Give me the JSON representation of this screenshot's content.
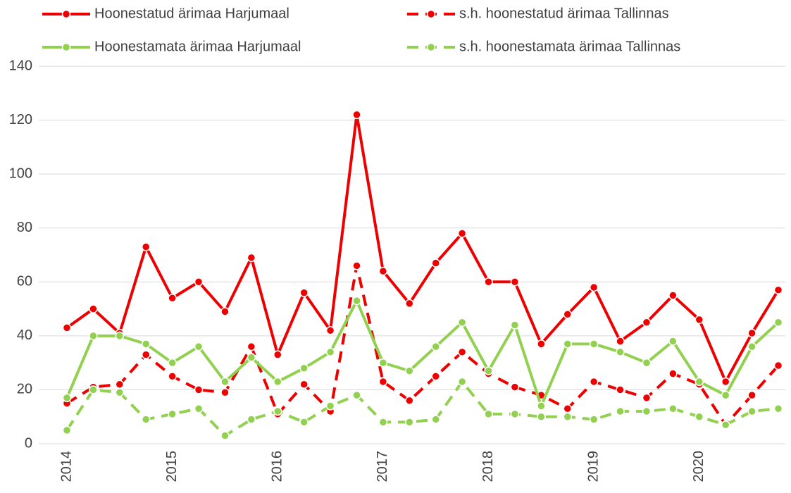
{
  "chart_data": {
    "type": "line",
    "categories": [
      "2014",
      null,
      null,
      null,
      "2015",
      null,
      null,
      null,
      "2016",
      null,
      null,
      null,
      "2017",
      null,
      null,
      null,
      "2018",
      null,
      null,
      null,
      "2019",
      null,
      null,
      null,
      "2020",
      null,
      null,
      null
    ],
    "series": [
      {
        "name": "Hoonestatud ärimaa Harjumaal",
        "color": "#ee0000",
        "dashed": false,
        "values": [
          43,
          50,
          41,
          73,
          54,
          60,
          49,
          69,
          33,
          56,
          42,
          122,
          64,
          52,
          67,
          78,
          60,
          60,
          37,
          48,
          58,
          38,
          45,
          55,
          46,
          23,
          41,
          57
        ]
      },
      {
        "name": "s.h. hoonestatud ärimaa Tallinnas",
        "color": "#ee0000",
        "dashed": true,
        "values": [
          15,
          21,
          22,
          33,
          25,
          20,
          19,
          36,
          11,
          22,
          12,
          66,
          23,
          16,
          25,
          34,
          26,
          21,
          18,
          13,
          23,
          20,
          17,
          26,
          22,
          7,
          18,
          29
        ]
      },
      {
        "name": "Hoonestamata ärimaa Harjumaal",
        "color": "#92d050",
        "dashed": false,
        "values": [
          17,
          40,
          40,
          37,
          30,
          36,
          23,
          32,
          23,
          28,
          34,
          53,
          30,
          27,
          36,
          45,
          27,
          44,
          14,
          37,
          37,
          34,
          30,
          38,
          23,
          18,
          36,
          45
        ]
      },
      {
        "name": "s.h. hoonestamata ärimaa Tallinnas",
        "color": "#92d050",
        "dashed": true,
        "values": [
          5,
          20,
          19,
          9,
          11,
          13,
          3,
          9,
          12,
          8,
          14,
          18,
          8,
          8,
          9,
          23,
          11,
          11,
          10,
          10,
          9,
          12,
          12,
          13,
          10,
          7,
          12,
          13
        ]
      }
    ],
    "ylim": [
      0,
      140
    ],
    "yticks": [
      0,
      20,
      40,
      60,
      80,
      100,
      120,
      140
    ],
    "grid": true
  }
}
